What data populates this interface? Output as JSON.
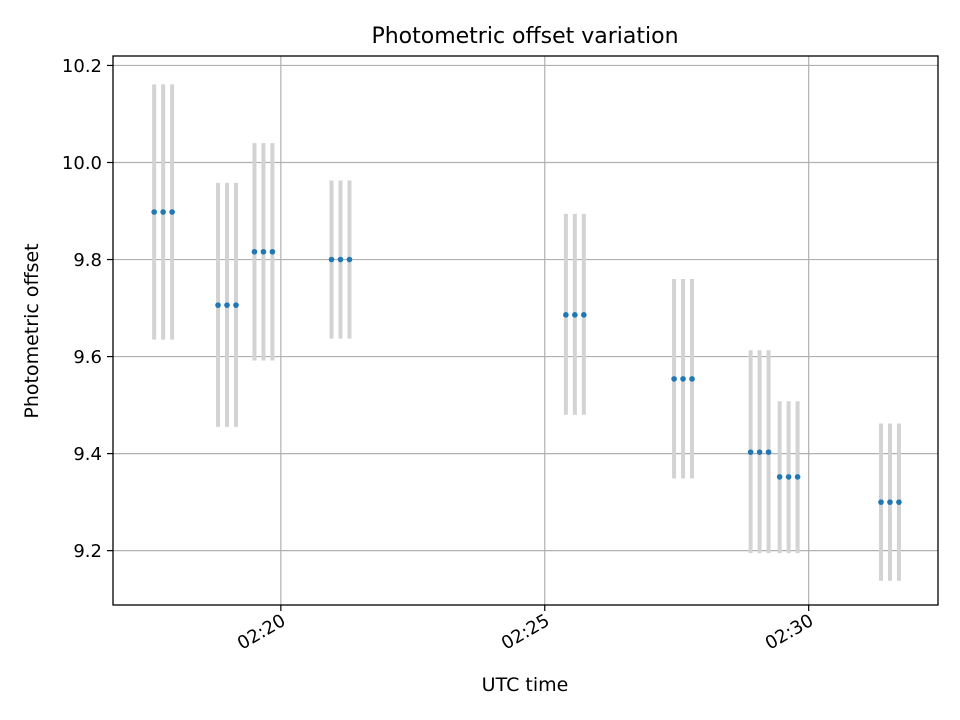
{
  "chart_data": {
    "type": "scatter",
    "title": "Photometric offset variation",
    "xlabel": "UTC time",
    "ylabel": "Photometric offset",
    "x_unit": "minutes past 02:00 UTC",
    "xlim": [
      16.82,
      32.45
    ],
    "ylim": [
      9.088,
      10.2195
    ],
    "x_ticks": [
      {
        "value": 20,
        "label": "02:20"
      },
      {
        "value": 25,
        "label": "02:25"
      },
      {
        "value": 30,
        "label": "02:30"
      }
    ],
    "y_ticks": [
      {
        "value": 9.2,
        "label": "9.2"
      },
      {
        "value": 9.4,
        "label": "9.4"
      },
      {
        "value": 9.6,
        "label": "9.6"
      },
      {
        "value": 9.8,
        "label": "9.8"
      },
      {
        "value": 10.0,
        "label": "10.0"
      },
      {
        "value": 10.2,
        "label": "10.2"
      }
    ],
    "grid": true,
    "legend": "none",
    "colors": {
      "marker": "#1f77b4",
      "errorbar": "#d3d3d3",
      "grid": "#b0b0b0"
    },
    "points": [
      {
        "x": 17.6,
        "y": 9.898,
        "ylow": 9.635,
        "yhigh": 10.161
      },
      {
        "x": 17.77,
        "y": 9.898,
        "ylow": 9.635,
        "yhigh": 10.161
      },
      {
        "x": 17.94,
        "y": 9.898,
        "ylow": 9.635,
        "yhigh": 10.161
      },
      {
        "x": 18.81,
        "y": 9.706,
        "ylow": 9.455,
        "yhigh": 9.958
      },
      {
        "x": 18.98,
        "y": 9.706,
        "ylow": 9.455,
        "yhigh": 9.958
      },
      {
        "x": 19.15,
        "y": 9.706,
        "ylow": 9.455,
        "yhigh": 9.958
      },
      {
        "x": 19.5,
        "y": 9.816,
        "ylow": 9.592,
        "yhigh": 10.04
      },
      {
        "x": 19.67,
        "y": 9.816,
        "ylow": 9.592,
        "yhigh": 10.04
      },
      {
        "x": 19.84,
        "y": 9.816,
        "ylow": 9.592,
        "yhigh": 10.04
      },
      {
        "x": 20.96,
        "y": 9.8,
        "ylow": 9.637,
        "yhigh": 9.963
      },
      {
        "x": 21.13,
        "y": 9.8,
        "ylow": 9.637,
        "yhigh": 9.963
      },
      {
        "x": 21.3,
        "y": 9.8,
        "ylow": 9.637,
        "yhigh": 9.963
      },
      {
        "x": 25.4,
        "y": 9.686,
        "ylow": 9.48,
        "yhigh": 9.894
      },
      {
        "x": 25.57,
        "y": 9.686,
        "ylow": 9.48,
        "yhigh": 9.894
      },
      {
        "x": 25.74,
        "y": 9.686,
        "ylow": 9.48,
        "yhigh": 9.894
      },
      {
        "x": 27.45,
        "y": 9.554,
        "ylow": 9.349,
        "yhigh": 9.76
      },
      {
        "x": 27.62,
        "y": 9.554,
        "ylow": 9.349,
        "yhigh": 9.76
      },
      {
        "x": 27.79,
        "y": 9.554,
        "ylow": 9.349,
        "yhigh": 9.76
      },
      {
        "x": 28.9,
        "y": 9.403,
        "ylow": 9.195,
        "yhigh": 9.613
      },
      {
        "x": 29.07,
        "y": 9.403,
        "ylow": 9.195,
        "yhigh": 9.613
      },
      {
        "x": 29.24,
        "y": 9.403,
        "ylow": 9.195,
        "yhigh": 9.613
      },
      {
        "x": 29.45,
        "y": 9.352,
        "ylow": 9.195,
        "yhigh": 9.508
      },
      {
        "x": 29.62,
        "y": 9.352,
        "ylow": 9.195,
        "yhigh": 9.508
      },
      {
        "x": 29.79,
        "y": 9.352,
        "ylow": 9.195,
        "yhigh": 9.508
      },
      {
        "x": 31.37,
        "y": 9.3,
        "ylow": 9.138,
        "yhigh": 9.462
      },
      {
        "x": 31.54,
        "y": 9.3,
        "ylow": 9.138,
        "yhigh": 9.462
      },
      {
        "x": 31.71,
        "y": 9.3,
        "ylow": 9.138,
        "yhigh": 9.462
      }
    ]
  }
}
